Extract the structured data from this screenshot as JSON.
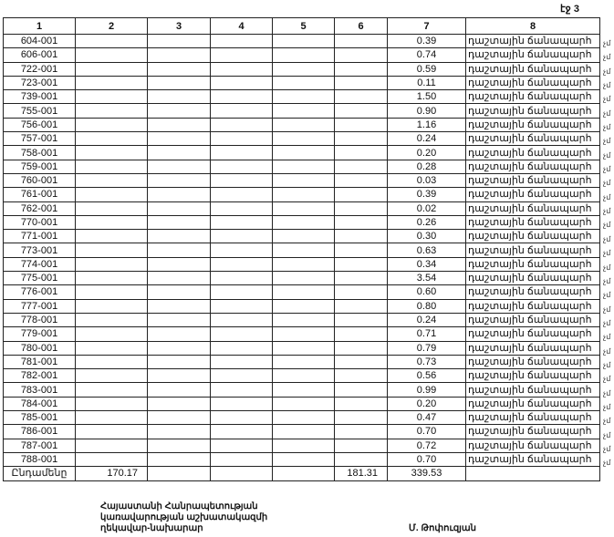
{
  "page_label": "էջ 3",
  "table": {
    "headers": [
      "1",
      "2",
      "3",
      "4",
      "5",
      "6",
      "7",
      "8"
    ],
    "rows": [
      {
        "code": "604-001",
        "area": "0.39",
        "type": "դաշտային ճանապարհ"
      },
      {
        "code": "606-001",
        "area": "0.74",
        "type": "դաշտային ճանապարհ"
      },
      {
        "code": "722-001",
        "area": "0.59",
        "type": "դաշտային ճանապարհ"
      },
      {
        "code": "723-001",
        "area": "0.11",
        "type": "դաշտային ճանապարհ"
      },
      {
        "code": "739-001",
        "area": "1.50",
        "type": "դաշտային ճանապարհ"
      },
      {
        "code": "755-001",
        "area": "0.90",
        "type": "դաշտային ճանապարհ"
      },
      {
        "code": "756-001",
        "area": "1.16",
        "type": "դաշտային ճանապարհ"
      },
      {
        "code": "757-001",
        "area": "0.24",
        "type": "դաշտային ճանապարհ"
      },
      {
        "code": "758-001",
        "area": "0.20",
        "type": "դաշտային ճանապարհ"
      },
      {
        "code": "759-001",
        "area": "0.28",
        "type": "դաշտային ճանապարհ"
      },
      {
        "code": "760-001",
        "area": "0.03",
        "type": "դաշտային ճանապարհ"
      },
      {
        "code": "761-001",
        "area": "0.39",
        "type": "դաշտային ճանապարհ"
      },
      {
        "code": "762-001",
        "area": "0.02",
        "type": "դաշտային ճանապարհ"
      },
      {
        "code": "770-001",
        "area": "0.26",
        "type": "դաշտային ճանապարհ"
      },
      {
        "code": "771-001",
        "area": "0.30",
        "type": "դաշտային ճանապարհ"
      },
      {
        "code": "773-001",
        "area": "0.63",
        "type": "դաշտային ճանապարհ"
      },
      {
        "code": "774-001",
        "area": "0.34",
        "type": "դաշտային ճանապարհ"
      },
      {
        "code": "775-001",
        "area": "3.54",
        "type": "դաշտային ճանապարհ"
      },
      {
        "code": "776-001",
        "area": "0.60",
        "type": "դաշտային ճանապարհ"
      },
      {
        "code": "777-001",
        "area": "0.80",
        "type": "դաշտային ճանապարհ"
      },
      {
        "code": "778-001",
        "area": "0.24",
        "type": "դաշտային ճանապարհ"
      },
      {
        "code": "779-001",
        "area": "0.71",
        "type": "դաշտային ճանապարհ"
      },
      {
        "code": "780-001",
        "area": "0.79",
        "type": "դաշտային ճանապարհ"
      },
      {
        "code": "781-001",
        "area": "0.73",
        "type": "դաշտային ճանապարհ"
      },
      {
        "code": "782-001",
        "area": "0.56",
        "type": "դաշտային ճանապարհ"
      },
      {
        "code": "783-001",
        "area": "0.99",
        "type": "դաշտային ճանապարհ"
      },
      {
        "code": "784-001",
        "area": "0.20",
        "type": "դաշտային ճանապարհ"
      },
      {
        "code": "785-001",
        "area": "0.47",
        "type": "դաշտային ճանապարհ"
      },
      {
        "code": "786-001",
        "area": "0.70",
        "type": "դաշտային ճանապարհ"
      },
      {
        "code": "787-001",
        "area": "0.72",
        "type": "դաշտային ճանապարհ"
      },
      {
        "code": "788-001",
        "area": "0.70",
        "type": "դաշտային ճանապարհ"
      }
    ],
    "side_mark": "չմ",
    "total": {
      "label": "Ընդամենը",
      "col2": "170.17",
      "col6": "181.31",
      "col7": "339.53"
    }
  },
  "signature": {
    "title_lines": [
      "Հայաստանի Հանրապետության",
      "կառավարության աշխատակազմի",
      "ղեկավար-նախարար"
    ],
    "name": "Մ. Թոփուզյան"
  }
}
